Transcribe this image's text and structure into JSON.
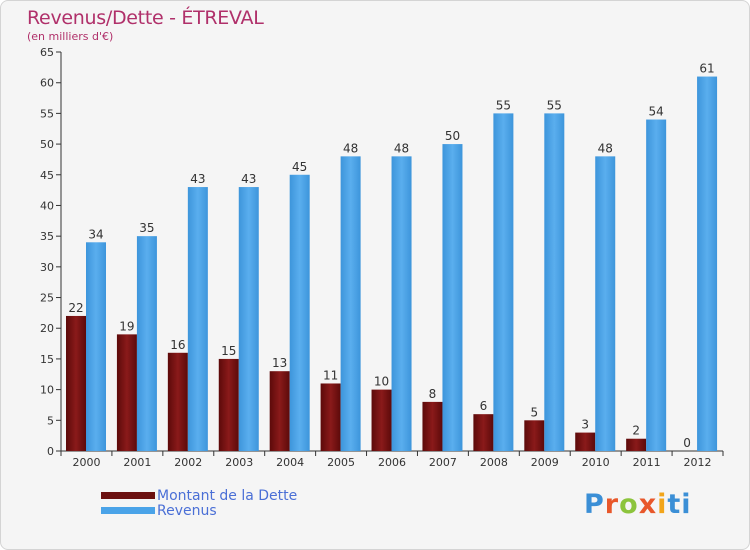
{
  "title": "Revenus/Dette - ÉTREVAL",
  "subtitle": "(en milliers d'€)",
  "brand": "Proxiti",
  "colors": {
    "dette": "#7b1111",
    "revenus": "#4aa3e8",
    "title": "#b0306a",
    "legend_text": "#4a6fd6"
  },
  "chart_data": {
    "type": "bar",
    "categories": [
      "2000",
      "2001",
      "2002",
      "2003",
      "2004",
      "2005",
      "2006",
      "2007",
      "2008",
      "2009",
      "2010",
      "2011",
      "2012"
    ],
    "series": [
      {
        "name": "Montant de la Dette",
        "values": [
          22,
          19,
          16,
          15,
          13,
          11,
          10,
          8,
          6,
          5,
          3,
          2,
          0
        ]
      },
      {
        "name": "Revenus",
        "values": [
          34,
          35,
          43,
          43,
          45,
          48,
          48,
          50,
          55,
          55,
          48,
          54,
          61
        ]
      }
    ],
    "yticks": [
      0,
      5,
      10,
      15,
      20,
      25,
      30,
      35,
      40,
      45,
      50,
      55,
      60,
      65
    ],
    "ylim": [
      0,
      65
    ],
    "grid": false,
    "legend": "bottom-left"
  }
}
